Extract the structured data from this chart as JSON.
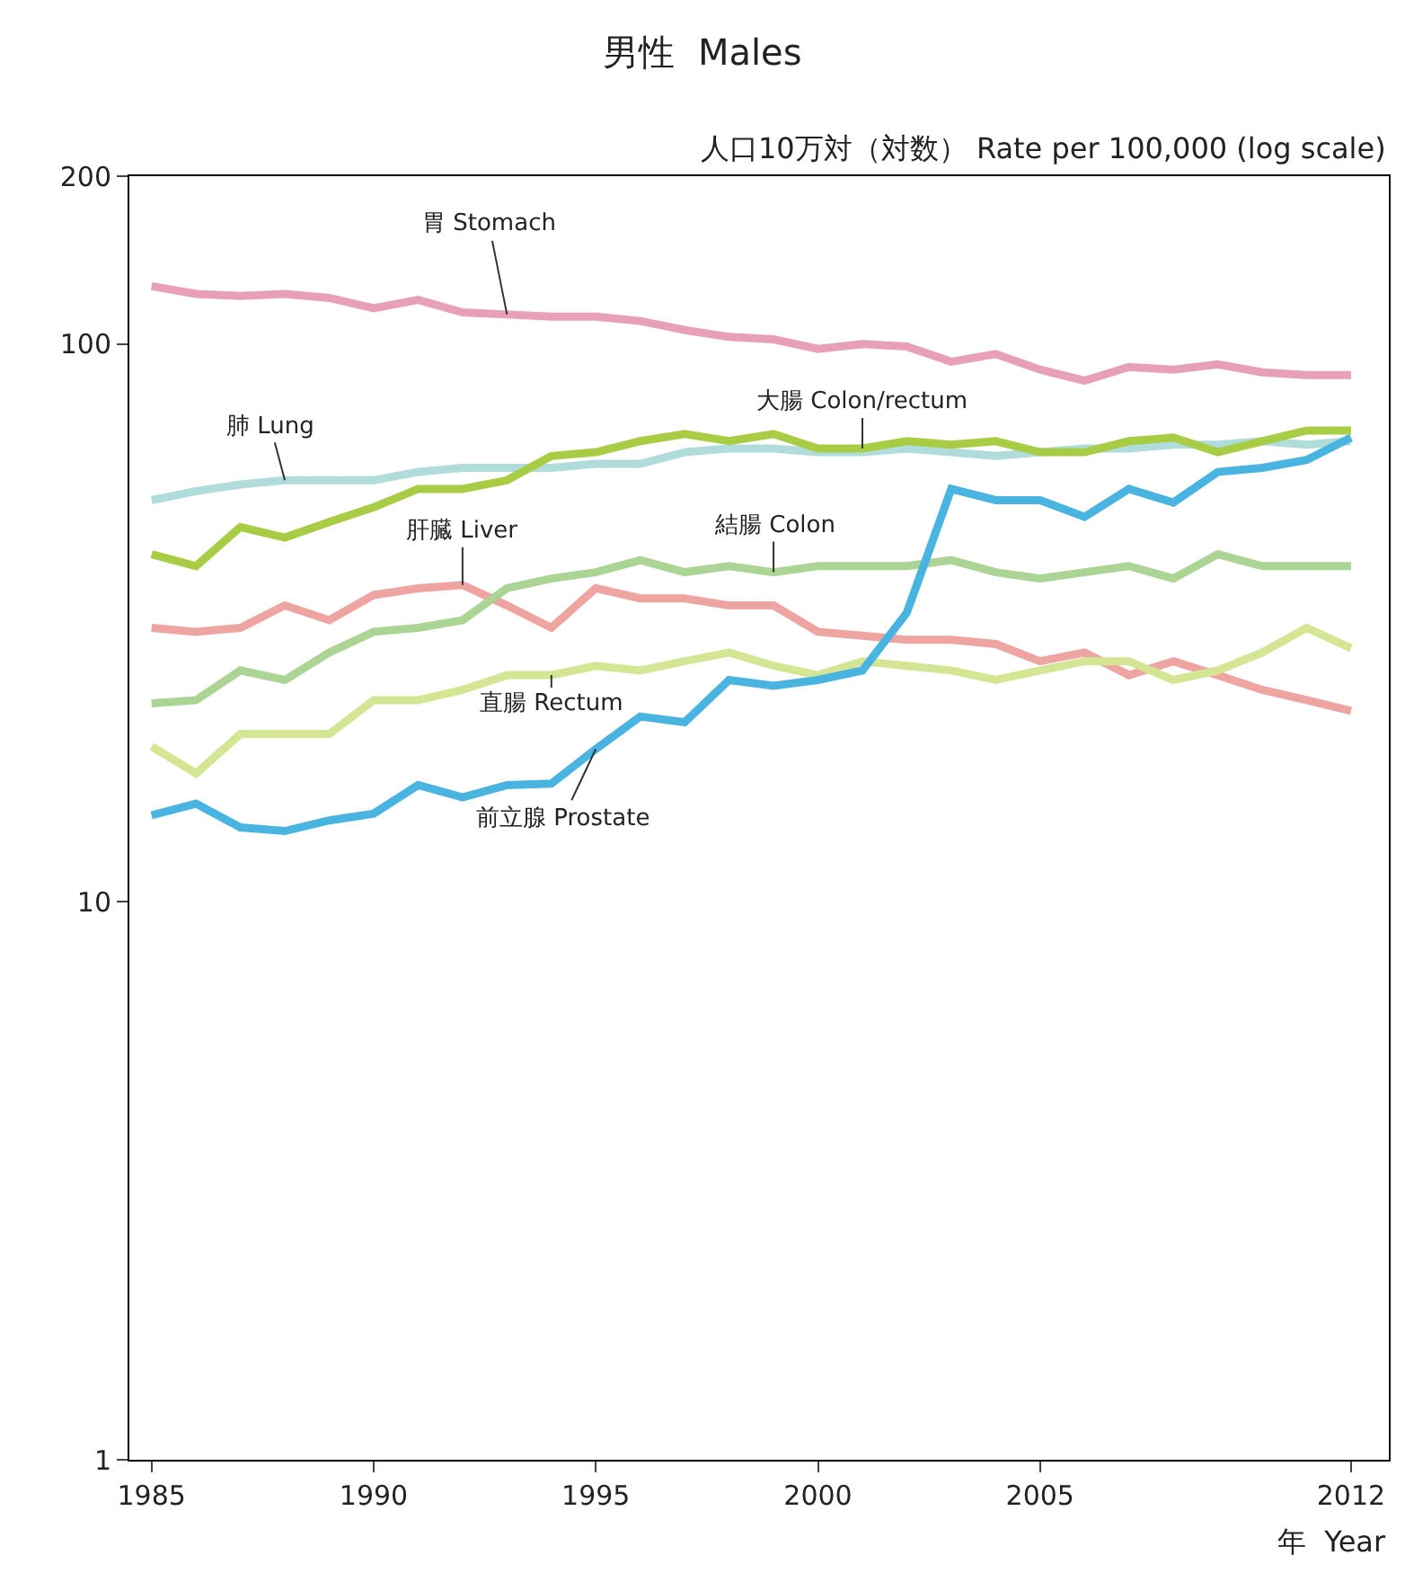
{
  "chart_data": {
    "type": "line",
    "title": "男性  Males",
    "ylabel": "人口10万対（対数） Rate per 100,000 (log scale)",
    "xlabel": "年  Year",
    "x": [
      1985,
      1986,
      1987,
      1988,
      1989,
      1990,
      1991,
      1992,
      1993,
      1994,
      1995,
      1996,
      1997,
      1998,
      1999,
      2000,
      2001,
      2002,
      2003,
      2004,
      2005,
      2006,
      2007,
      2008,
      2009,
      2010,
      2011,
      2012
    ],
    "series": [
      {
        "name": "胃 Stomach",
        "color": "#e8a0b8",
        "values": [
          127,
          123,
          122,
          123,
          121,
          116,
          120,
          114,
          113,
          112,
          112,
          110,
          106,
          103,
          102,
          98,
          100,
          99,
          93,
          96,
          90,
          86,
          91,
          90,
          92,
          89,
          88,
          88
        ]
      },
      {
        "name": "肺 Lung",
        "color": "#b0dcdc",
        "values": [
          52.5,
          54.5,
          56,
          57,
          57,
          57,
          59,
          60,
          60,
          60,
          61,
          61,
          64,
          65,
          65,
          64,
          64,
          65,
          64,
          63,
          64,
          65,
          65,
          66,
          66,
          67,
          66,
          67
        ]
      },
      {
        "name": "大腸 Colon/rectum",
        "color": "#a8cc44",
        "values": [
          42,
          40,
          47,
          45,
          48,
          51,
          55,
          55,
          57,
          63,
          64,
          67,
          69,
          67,
          69,
          65,
          65,
          67,
          66,
          67,
          64,
          64,
          67,
          68,
          64,
          67,
          70,
          70
        ]
      },
      {
        "name": "肝臓 Liver",
        "color": "#eea4a0",
        "values": [
          31,
          30.5,
          31,
          34,
          32,
          35.5,
          36.5,
          37,
          34,
          31,
          36.5,
          35,
          35,
          34,
          34,
          30.5,
          30,
          29.5,
          29.5,
          29,
          27,
          28,
          25.5,
          27,
          25.5,
          24,
          23,
          22
        ]
      },
      {
        "name": "結腸 Colon",
        "color": "#acd494",
        "values": [
          22.7,
          23,
          26,
          25,
          28,
          30.5,
          31,
          32,
          36.5,
          38,
          39,
          41,
          39,
          40,
          39,
          40,
          40,
          40,
          41,
          39,
          38,
          39,
          40,
          38,
          42,
          40,
          40,
          40
        ]
      },
      {
        "name": "直腸 Rectum",
        "color": "#d4e694",
        "values": [
          19,
          17,
          20,
          20,
          20,
          23,
          23,
          24,
          25.5,
          25.5,
          26.5,
          26,
          27,
          28,
          26.5,
          25.5,
          27,
          26.5,
          26,
          25,
          26,
          27,
          27,
          25,
          26,
          28,
          31,
          28.5
        ]
      },
      {
        "name": "前立腺 Prostate",
        "color": "#4ab4e0",
        "values": [
          14.3,
          15,
          13.6,
          13.4,
          14,
          14.4,
          16.2,
          15.4,
          16.2,
          16.3,
          18.8,
          21.5,
          21,
          25,
          24.4,
          25,
          26,
          33,
          55,
          52.5,
          52.5,
          49,
          55,
          52,
          59,
          60,
          62,
          68
        ]
      }
    ],
    "log": "y",
    "xlim": [
      1984.5,
      2012.85
    ],
    "ylim": [
      1,
      200
    ],
    "xticks": [
      1985,
      1990,
      1995,
      2000,
      2005,
      2012
    ],
    "yticks": [
      1,
      10,
      100,
      200
    ],
    "grid": false,
    "legend": false,
    "marker": "none",
    "line_style": "solid"
  }
}
